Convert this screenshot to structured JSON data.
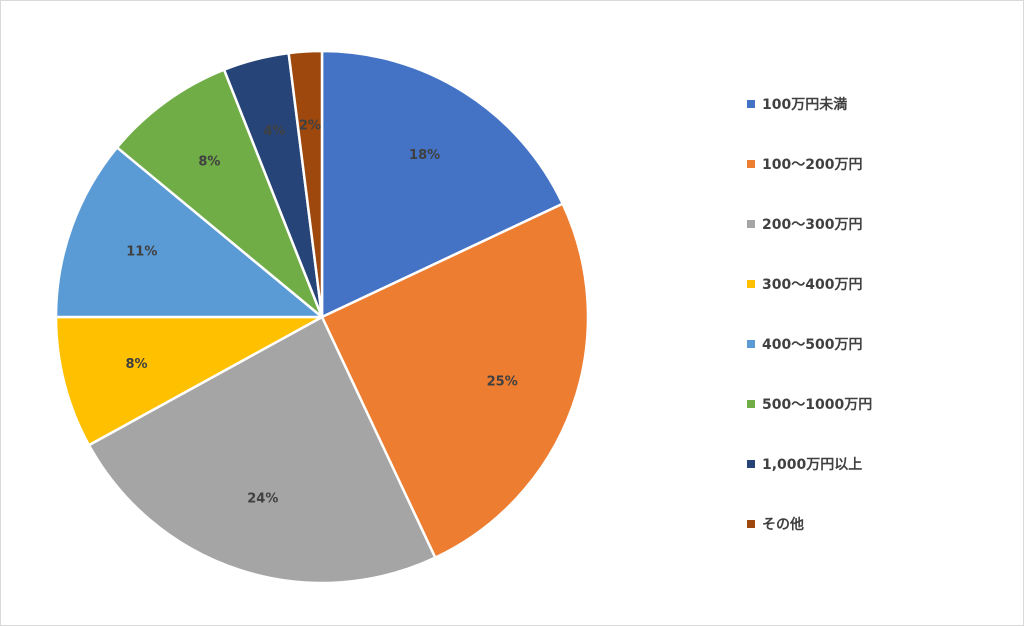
{
  "chart_data": {
    "type": "pie",
    "title": "",
    "start_angle_deg": 0,
    "direction": "clockwise",
    "data_labels": [
      "18%",
      "25%",
      "24%",
      "8%",
      "11%",
      "8%",
      "4%",
      "2%"
    ],
    "slices": [
      {
        "label": "100万円未満",
        "value": 18,
        "color": "#4472C4"
      },
      {
        "label": "100～200万円",
        "value": 25,
        "color": "#ED7D31"
      },
      {
        "label": "200～300万円",
        "value": 24,
        "color": "#A5A5A5"
      },
      {
        "label": "300～400万円",
        "value": 8,
        "color": "#FFC000"
      },
      {
        "label": "400～500万円",
        "value": 11,
        "color": "#5B9BD5"
      },
      {
        "label": "500～1000万円",
        "value": 8,
        "color": "#70AD47"
      },
      {
        "label": "1,000万円以上",
        "value": 4,
        "color": "#264478"
      },
      {
        "label": "その他",
        "value": 2,
        "color": "#9E480E"
      }
    ],
    "legend": {
      "position": "right",
      "items": [
        "100万円未満",
        "100～200万円",
        "200～300万円",
        "300～400万円",
        "400～500万円",
        "500～1000万円",
        "1,000万円以上",
        "その他"
      ]
    }
  }
}
